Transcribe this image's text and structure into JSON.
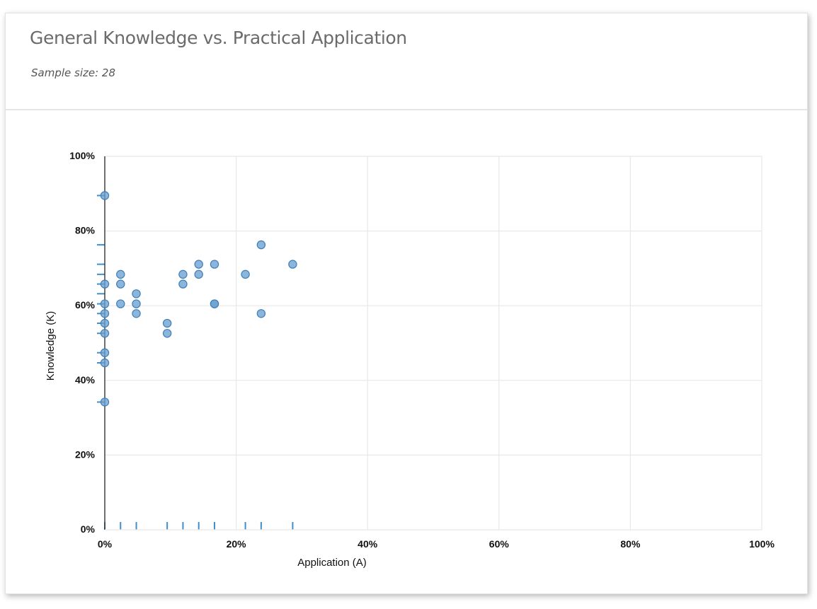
{
  "card": {
    "title": "General Knowledge vs. Practical Application",
    "subtitle": "Sample size: 28"
  },
  "colors": {
    "point_fill": "#6aa0cf",
    "point_stroke": "#3f7fb8",
    "rug": "#3f8fcc",
    "grid": "#e8e8e8",
    "axis": "#333333"
  },
  "chart_data": {
    "type": "scatter",
    "title": "General Knowledge vs. Practical Application",
    "subtitle": "Sample size: 28",
    "xlabel": "Application (A)",
    "ylabel": "Knowledge (K)",
    "xlim": [
      0,
      100
    ],
    "ylim": [
      0,
      100
    ],
    "x_ticks": [
      "0%",
      "20%",
      "40%",
      "60%",
      "80%",
      "100%"
    ],
    "y_ticks": [
      "0%",
      "20%",
      "40%",
      "60%",
      "80%",
      "100%"
    ],
    "grid": true,
    "rug_marks": true,
    "points": [
      {
        "x": 0,
        "y": 89.5
      },
      {
        "x": 0,
        "y": 65.8
      },
      {
        "x": 0,
        "y": 60.5
      },
      {
        "x": 0,
        "y": 57.9
      },
      {
        "x": 0,
        "y": 55.3
      },
      {
        "x": 0,
        "y": 52.6
      },
      {
        "x": 0,
        "y": 47.4
      },
      {
        "x": 0,
        "y": 44.7
      },
      {
        "x": 0,
        "y": 34.2
      },
      {
        "x": 2.4,
        "y": 68.4
      },
      {
        "x": 2.4,
        "y": 65.8
      },
      {
        "x": 2.4,
        "y": 60.5
      },
      {
        "x": 4.8,
        "y": 63.2
      },
      {
        "x": 4.8,
        "y": 60.5
      },
      {
        "x": 4.8,
        "y": 57.9
      },
      {
        "x": 9.5,
        "y": 55.3
      },
      {
        "x": 9.5,
        "y": 52.6
      },
      {
        "x": 11.9,
        "y": 68.4
      },
      {
        "x": 11.9,
        "y": 65.8
      },
      {
        "x": 14.3,
        "y": 71.1
      },
      {
        "x": 14.3,
        "y": 68.4
      },
      {
        "x": 16.7,
        "y": 71.1
      },
      {
        "x": 16.7,
        "y": 60.5
      },
      {
        "x": 16.7,
        "y": 60.5
      },
      {
        "x": 21.4,
        "y": 68.4
      },
      {
        "x": 23.8,
        "y": 76.3
      },
      {
        "x": 23.8,
        "y": 57.9
      },
      {
        "x": 28.6,
        "y": 71.1
      }
    ]
  }
}
